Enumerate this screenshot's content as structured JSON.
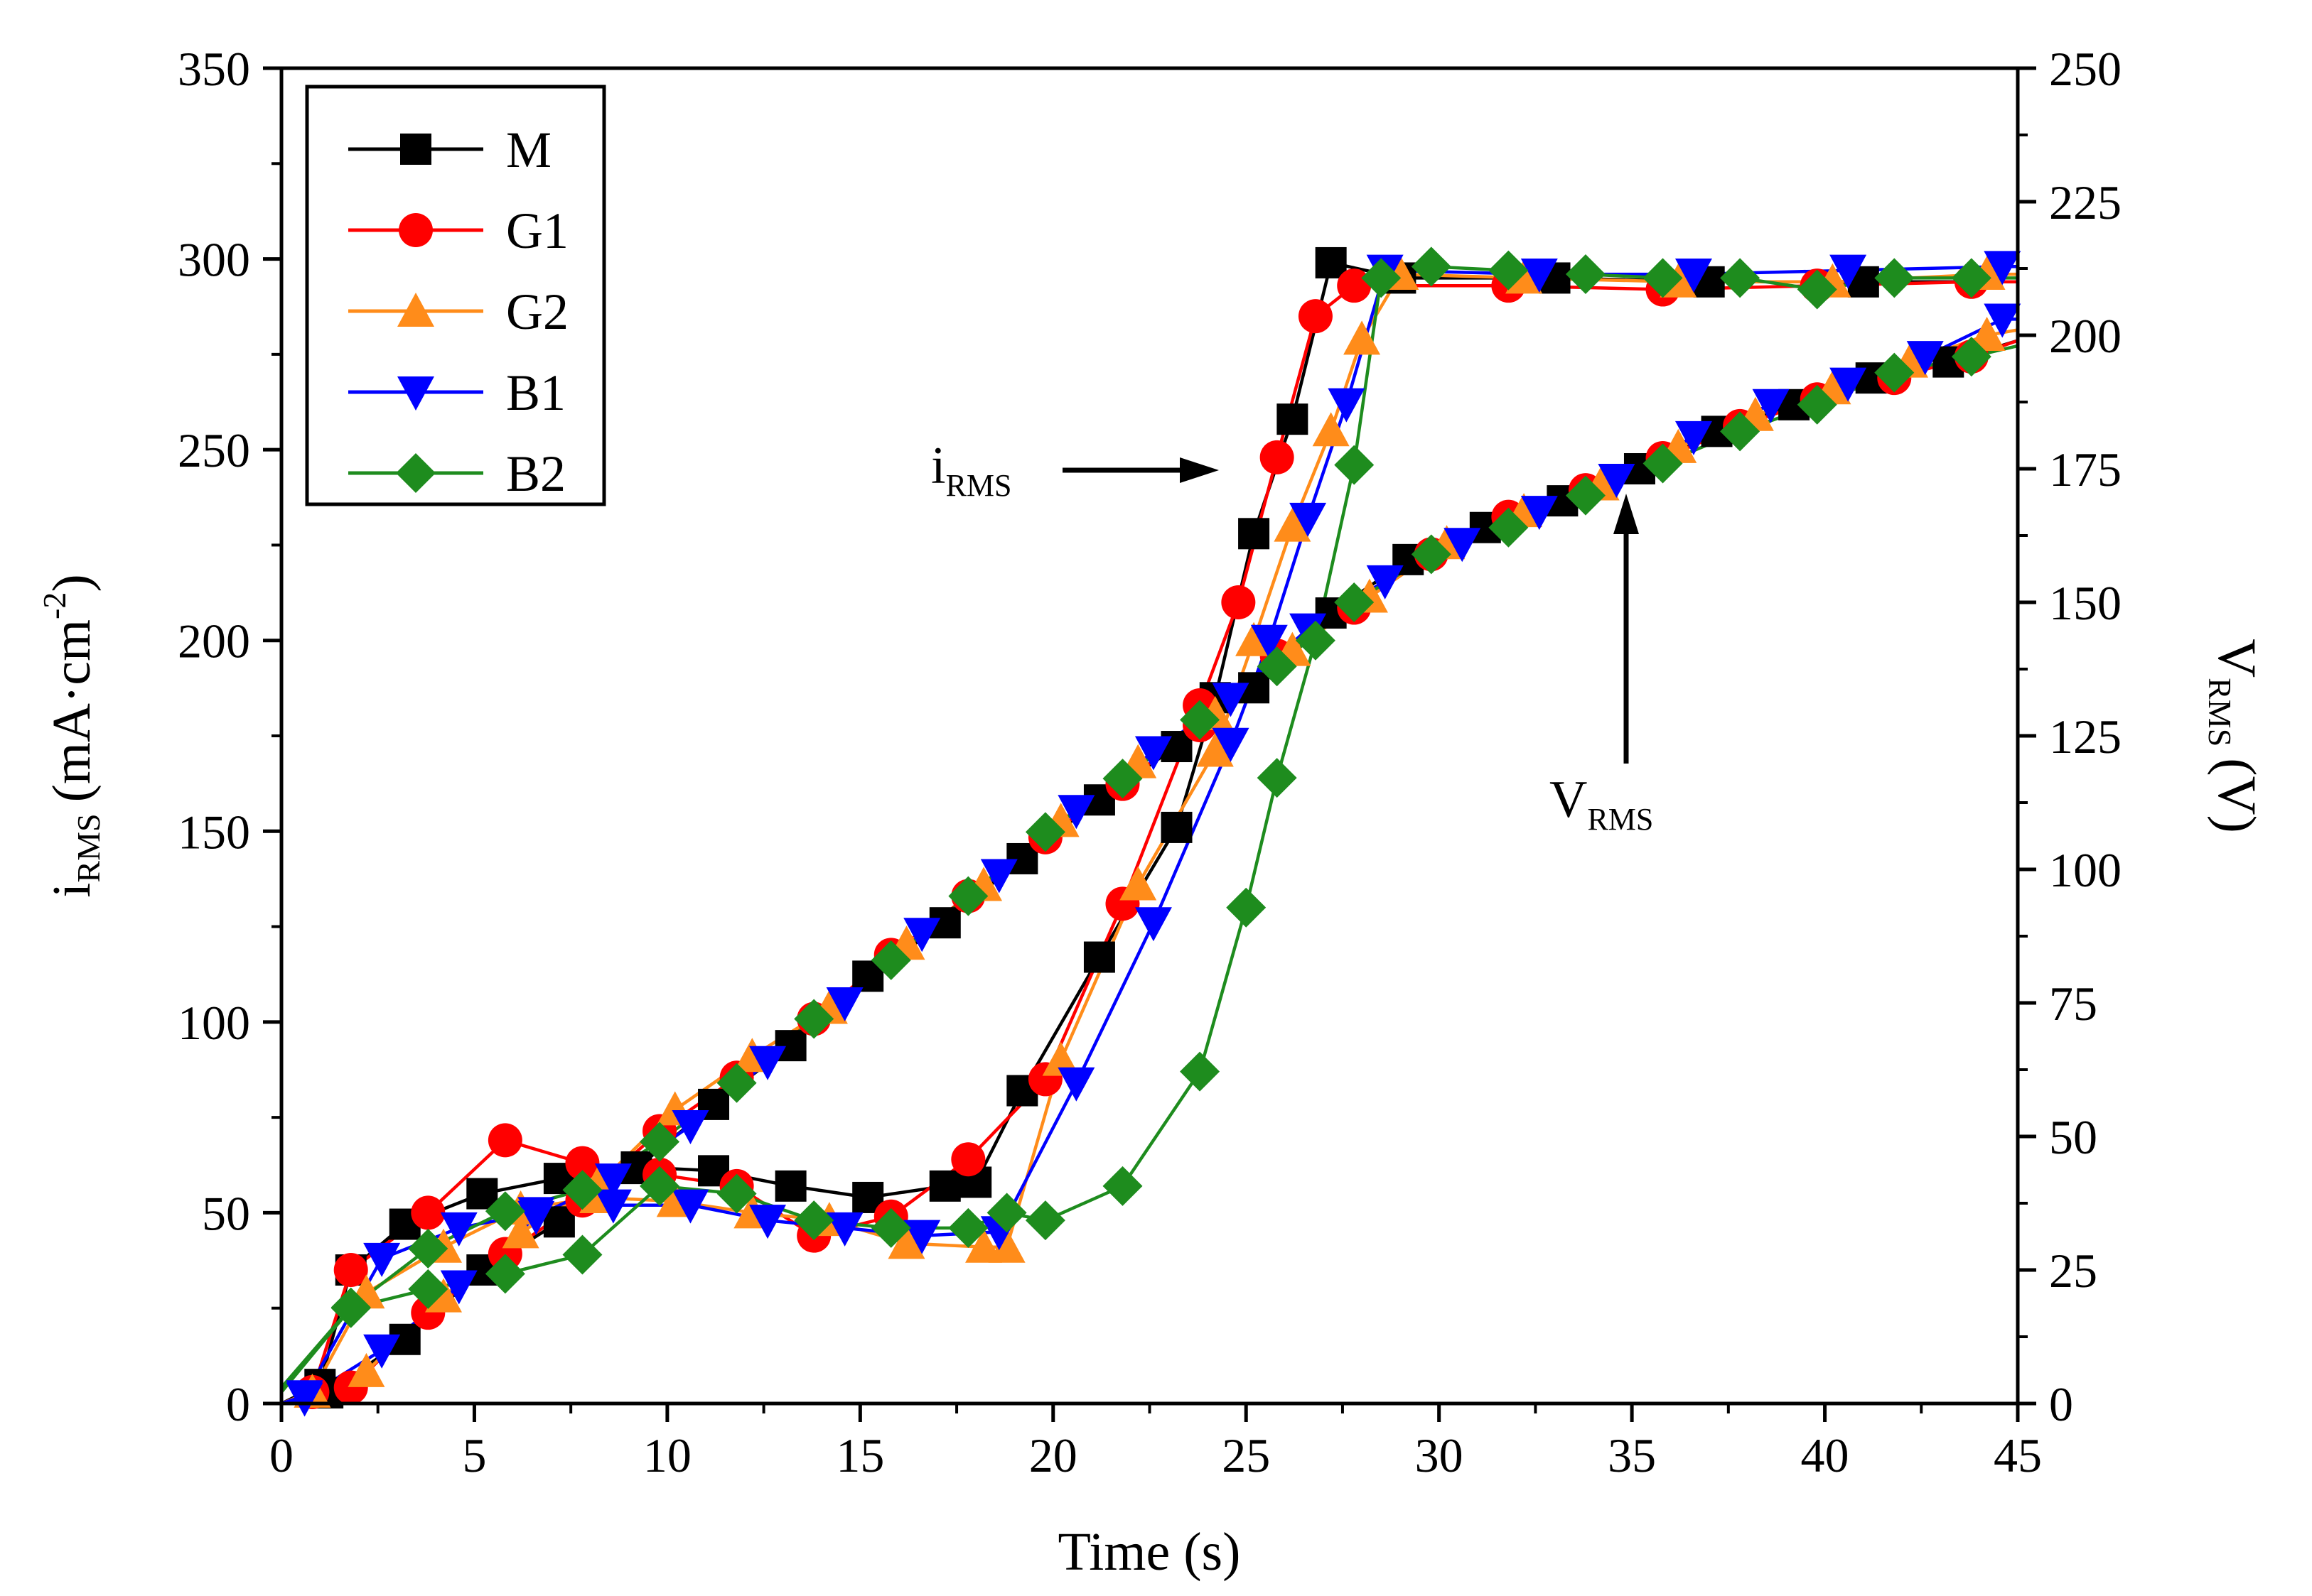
{
  "chart_data": {
    "type": "line",
    "title": "",
    "xlabel": "Time (s)",
    "xlim": [
      0,
      45
    ],
    "xticks": [
      0,
      5,
      10,
      15,
      20,
      25,
      30,
      35,
      40,
      45
    ],
    "y_left": {
      "label_main": "i",
      "label_sub": "RMS",
      "label_units": "(mA·cm",
      "label_sup": "-2",
      "label_close": ")",
      "lim": [
        0,
        350
      ],
      "ticks": [
        0,
        50,
        100,
        150,
        200,
        250,
        300,
        350
      ]
    },
    "y_right": {
      "label_main": "V",
      "label_sub": "RMS",
      "label_units": "(V)",
      "lim": [
        0,
        250
      ],
      "ticks": [
        0,
        25,
        50,
        75,
        100,
        125,
        150,
        175,
        200,
        225,
        250
      ]
    },
    "legend_position": "top-left",
    "annotations": [
      {
        "main": "i",
        "sub": "RMS",
        "points_to": "current curves"
      },
      {
        "main": "V",
        "sub": "RMS",
        "points_to": "voltage curves"
      }
    ],
    "series": [
      {
        "name": "M",
        "color": "#000000",
        "marker": "square",
        "current": {
          "axis": "left",
          "x": [
            0,
            1,
            1.8,
            3.2,
            5.2,
            7.2,
            9.2,
            11.2,
            13.2,
            15.2,
            17.2,
            18,
            19.2,
            21.2,
            23.2,
            24.2,
            25.2,
            26.2,
            27.2,
            29,
            33,
            37,
            41,
            45
          ],
          "y": [
            0,
            5,
            35,
            47,
            55,
            59,
            62,
            61,
            57,
            54,
            57,
            58,
            82,
            117,
            151,
            185,
            228,
            258,
            299,
            295,
            295,
            294,
            294,
            294
          ]
        },
        "voltage": {
          "axis": "right",
          "x": [
            0,
            1.2,
            3.2,
            5.2,
            7.2,
            9.2,
            11.2,
            13.2,
            15.2,
            17.2,
            19.2,
            21.2,
            23.2,
            25.2,
            27.2,
            29.2,
            31.2,
            33.2,
            35.2,
            37.2,
            39.2,
            41.2,
            43.2,
            45
          ],
          "y": [
            0,
            2,
            12,
            25,
            34,
            44,
            56,
            67,
            80,
            90,
            102,
            113,
            123,
            134,
            148,
            158,
            164,
            169,
            175,
            182,
            187,
            192,
            195,
            199
          ]
        }
      },
      {
        "name": "G1",
        "color": "#ff0000",
        "marker": "circle",
        "current": {
          "axis": "left",
          "x": [
            0,
            0.8,
            1.8,
            3.8,
            5.8,
            7.8,
            9.8,
            11.8,
            13.8,
            15.8,
            17.8,
            19.8,
            21.8,
            23.8,
            24.8,
            25.8,
            26.8,
            27.8,
            31.8,
            35.8,
            39.8,
            43.8,
            45
          ],
          "y": [
            0,
            3,
            35,
            50,
            69,
            63,
            60,
            57,
            44,
            49,
            64,
            85,
            131,
            183,
            210,
            248,
            285,
            293,
            293,
            292,
            293,
            294,
            294
          ]
        },
        "voltage": {
          "axis": "right",
          "x": [
            0,
            1.8,
            3.8,
            5.8,
            7.8,
            9.8,
            11.8,
            13.8,
            15.8,
            17.8,
            19.8,
            21.8,
            23.8,
            25.8,
            27.8,
            29.8,
            31.8,
            33.8,
            35.8,
            37.8,
            39.8,
            41.8,
            43.8,
            45
          ],
          "y": [
            0,
            3,
            17,
            28,
            38,
            51,
            61,
            72,
            84,
            95,
            106,
            116,
            127,
            140,
            149,
            159,
            166,
            171,
            177,
            183,
            188,
            192,
            196,
            199
          ]
        }
      },
      {
        "name": "G2",
        "color": "#ff8c1a",
        "marker": "triangle-up",
        "current": {
          "axis": "left",
          "x": [
            0,
            0.8,
            2.2,
            4.2,
            6.2,
            8.2,
            10.2,
            12.2,
            14.2,
            16.2,
            18.2,
            18.8,
            20.2,
            22.2,
            24.2,
            25.2,
            26.2,
            27.2,
            28,
            29,
            32.2,
            36.2,
            40.2,
            44.2,
            45
          ],
          "y": [
            0,
            3,
            29,
            41,
            51,
            54,
            53,
            50,
            48,
            42,
            41,
            41,
            90,
            136,
            171,
            200,
            230,
            255,
            279,
            296,
            295,
            294,
            294,
            296,
            296
          ]
        },
        "voltage": {
          "axis": "right",
          "x": [
            0,
            2.2,
            4.2,
            6.2,
            8.2,
            10.2,
            12.2,
            14.2,
            16.2,
            18.2,
            20.2,
            22.2,
            24.2,
            26.2,
            28.2,
            30.2,
            32.2,
            34.2,
            36.2,
            38.2,
            40.2,
            42.2,
            44.2,
            45
          ],
          "y": [
            0,
            6,
            20,
            32,
            41,
            55,
            65,
            74,
            86,
            97,
            109,
            120,
            129,
            141,
            151,
            161,
            167,
            172,
            179,
            185,
            190,
            195,
            200,
            201
          ]
        }
      },
      {
        "name": "B1",
        "color": "#0000ff",
        "marker": "triangle-down",
        "current": {
          "axis": "left",
          "x": [
            0,
            0.6,
            2.6,
            4.6,
            6.6,
            8.6,
            10.6,
            12.6,
            14.6,
            16.6,
            18.6,
            20.6,
            22.6,
            24.6,
            25.6,
            26.6,
            27.6,
            28.6,
            32.6,
            36.6,
            40.6,
            44.6,
            45
          ],
          "y": [
            0,
            2,
            38,
            46,
            50,
            52,
            52,
            48,
            46,
            44,
            45,
            84,
            126,
            173,
            200,
            232,
            262,
            297,
            296,
            296,
            297,
            298,
            298
          ]
        },
        "voltage": {
          "axis": "right",
          "x": [
            0,
            0.6,
            2.6,
            4.6,
            6.6,
            8.6,
            10.6,
            12.6,
            14.6,
            16.6,
            18.6,
            20.6,
            22.6,
            24.6,
            26.6,
            28.6,
            30.6,
            32.6,
            34.6,
            36.6,
            38.6,
            40.6,
            42.6,
            44.6,
            45
          ],
          "y": [
            0,
            1,
            10,
            22,
            35,
            42,
            52,
            64,
            75,
            88,
            99,
            111,
            122,
            132,
            145,
            154,
            161,
            167,
            173,
            181,
            187,
            191,
            196,
            203,
            203
          ]
        }
      },
      {
        "name": "B2",
        "color": "#1e8c1e",
        "marker": "diamond",
        "current": {
          "axis": "left",
          "x": [
            0,
            1.8,
            3.8,
            5.8,
            7.8,
            9.8,
            11.8,
            13.8,
            15.8,
            17.8,
            18.8,
            19.8,
            21.8,
            23.8,
            25,
            25.8,
            26.8,
            27.8,
            28.5,
            29.8,
            31.8,
            33.8,
            35.8,
            37.8,
            39.8,
            41.8,
            43.8,
            45
          ],
          "y": [
            3,
            25,
            30,
            34,
            39,
            57,
            55,
            48,
            46,
            46,
            50,
            48,
            57,
            87,
            130,
            164,
            200,
            246,
            295,
            298,
            297,
            296,
            295,
            295,
            292,
            295,
            295,
            295
          ]
        },
        "voltage": {
          "axis": "right",
          "x": [
            0,
            1.8,
            3.8,
            5.8,
            7.8,
            9.8,
            11.8,
            13.8,
            15.8,
            17.8,
            19.8,
            21.8,
            23.8,
            25.8,
            27.8,
            29.8,
            31.8,
            33.8,
            35.8,
            37.8,
            39.8,
            41.8,
            43.8,
            45
          ],
          "y": [
            3,
            18,
            29,
            36,
            40,
            49,
            60,
            72,
            83,
            95,
            107,
            117,
            128,
            138,
            150,
            159,
            164,
            170,
            176,
            182,
            187,
            193,
            196,
            198
          ]
        }
      }
    ]
  }
}
